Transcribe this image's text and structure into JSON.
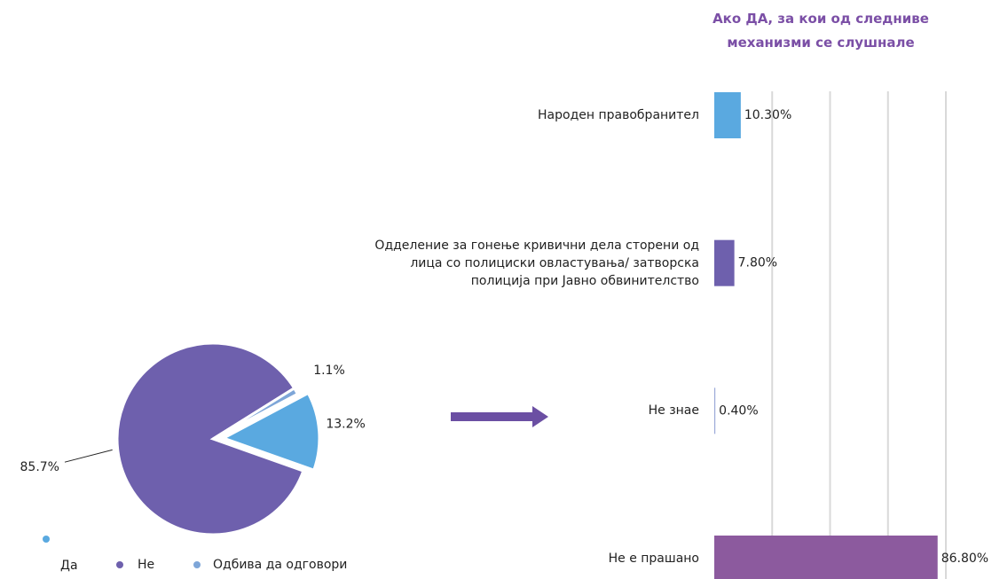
{
  "chart_data": [
    {
      "type": "pie",
      "categories": [
        "Да",
        "Не",
        "Одбива да одговори"
      ],
      "values": [
        13.2,
        85.7,
        1.1
      ],
      "value_labels": [
        "13.2%",
        "85.7%",
        "1.1%"
      ],
      "colors": [
        "#5aa9e0",
        "#6e60ad",
        "#7ea6d8"
      ],
      "legend": "bottom"
    },
    {
      "type": "barh",
      "title": "Ако ДА, за кои од следниве механизми се слушнале",
      "categories": [
        "Народен правобранител",
        "Одделение за гонење кривични дела сторени од лица со полициски овластувања/ затворска полиција при Јавно обвинителство",
        "Не знае",
        "Не е прашано"
      ],
      "values": [
        10.3,
        7.8,
        0.4,
        86.8
      ],
      "value_labels": [
        "10.30%",
        "7.80%",
        "0.40%",
        "86.80%"
      ],
      "colors": [
        "#5aa9e0",
        "#6e60ad",
        "#9aa8d8",
        "#8c5a9e"
      ],
      "xlim": [
        0,
        90
      ],
      "xticks": [
        0,
        22.5,
        45,
        67.5,
        90
      ],
      "grid": true
    }
  ]
}
